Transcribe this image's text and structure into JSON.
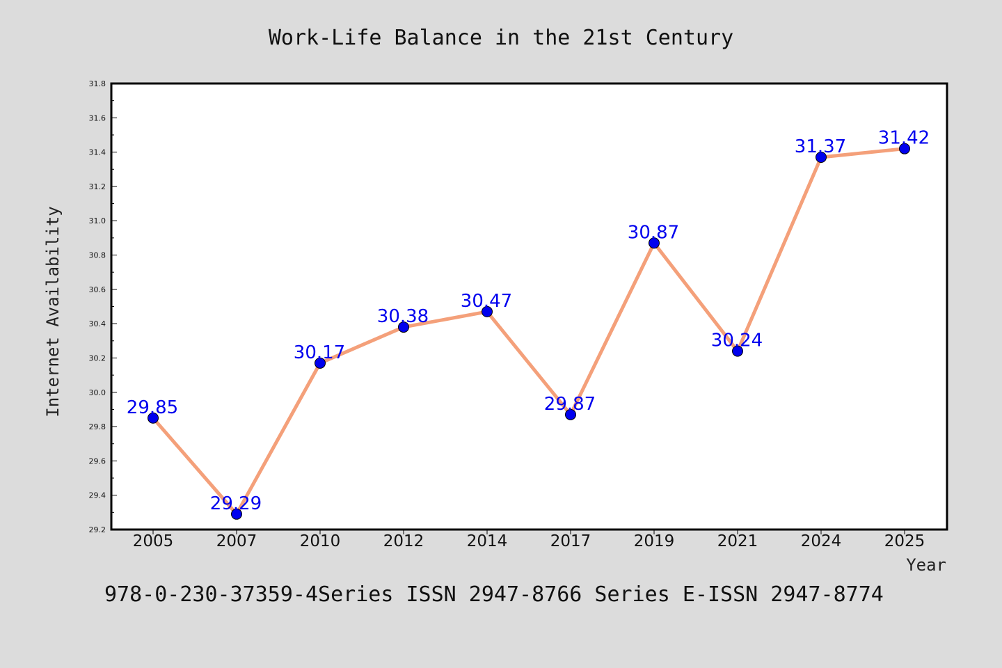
{
  "chart_data": {
    "type": "line",
    "title": "Work-Life Balance in the 21st Century",
    "xlabel": "Year",
    "ylabel": "Internet Availability",
    "categories": [
      "2005",
      "2007",
      "2010",
      "2012",
      "2014",
      "2017",
      "2019",
      "2021",
      "2024",
      "2025"
    ],
    "series": [
      {
        "values": [
          29.85,
          29.29,
          30.17,
          30.38,
          30.47,
          29.87,
          30.87,
          30.24,
          31.37,
          31.42
        ],
        "data_labels": [
          "29.85",
          "29.29",
          "30.17",
          "30.38",
          "30.47",
          "29.87",
          "30.87",
          "30.24",
          "31.37",
          "31.42"
        ],
        "line_color": "#f4a07a",
        "marker_color": "#0000ee"
      }
    ],
    "ylim": [
      29.2,
      31.8
    ],
    "yticks": [
      "29.2",
      "29.4",
      "29.6",
      "29.8",
      "30.0",
      "30.2",
      "30.4",
      "30.6",
      "30.8",
      "31.0",
      "31.2",
      "31.4",
      "31.6",
      "31.8"
    ],
    "grid": false,
    "legend": "none"
  },
  "footer_text": "978-0-230-37359-4Series ISSN 2947-8766 Series E-ISSN 2947-8774",
  "colors": {
    "background": "#dcdcdc",
    "plot_area": "#ffffff",
    "data_label": "#0000ee"
  }
}
